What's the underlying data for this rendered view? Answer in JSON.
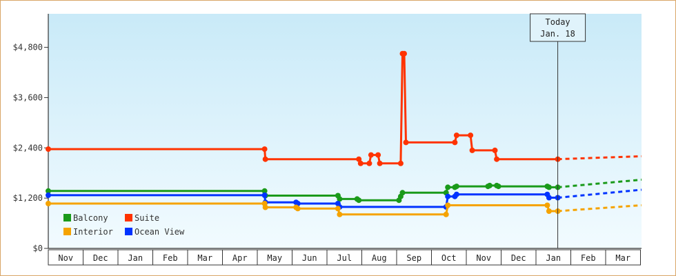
{
  "chart_data": {
    "type": "line",
    "y_axis": {
      "ticks": [
        "$0",
        "$1,200",
        "$2,400",
        "$3,600",
        "$4,800"
      ],
      "tick_values": [
        0,
        1200,
        2400,
        3600,
        4800
      ],
      "ylim": [
        0,
        5600
      ],
      "ticks_right_side": true
    },
    "x_axis": {
      "months": [
        "Nov",
        "Dec",
        "Jan",
        "Feb",
        "Mar",
        "Apr",
        "May",
        "Jun",
        "Jul",
        "Aug",
        "Sep",
        "Oct",
        "Nov",
        "Dec",
        "Jan",
        "Feb",
        "Mar"
      ],
      "xlim": [
        0,
        17
      ]
    },
    "today": {
      "line1": "Today",
      "line2": "Jan. 18",
      "x": 14.6
    },
    "legend": [
      {
        "label": "Balcony",
        "color": "#1a9a1a"
      },
      {
        "label": "Suite",
        "color": "#ff3300"
      },
      {
        "label": "Interior",
        "color": "#f5a300"
      },
      {
        "label": "Ocean View",
        "color": "#0033ff"
      }
    ],
    "series": [
      {
        "name": "Suite",
        "color": "#ff3300",
        "points": [
          [
            0,
            2370
          ],
          [
            6.2,
            2370
          ],
          [
            6.22,
            2130
          ],
          [
            8.9,
            2130
          ],
          [
            8.95,
            2030
          ],
          [
            9.2,
            2030
          ],
          [
            9.25,
            2230
          ],
          [
            9.45,
            2230
          ],
          [
            9.5,
            2030
          ],
          [
            10.1,
            2030
          ],
          [
            10.15,
            4650
          ],
          [
            10.2,
            4650
          ],
          [
            10.25,
            2530
          ],
          [
            11.65,
            2530
          ],
          [
            11.7,
            2700
          ],
          [
            12.1,
            2700
          ],
          [
            12.15,
            2340
          ],
          [
            12.8,
            2340
          ],
          [
            12.85,
            2130
          ],
          [
            14.6,
            2130
          ]
        ],
        "forecast": [
          [
            14.6,
            2130
          ],
          [
            17,
            2200
          ]
        ]
      },
      {
        "name": "Balcony",
        "color": "#1a9a1a",
        "points": [
          [
            0,
            1370
          ],
          [
            6.2,
            1370
          ],
          [
            6.22,
            1260
          ],
          [
            8.3,
            1260
          ],
          [
            8.35,
            1180
          ],
          [
            8.85,
            1180
          ],
          [
            8.9,
            1150
          ],
          [
            10.05,
            1150
          ],
          [
            10.1,
            1240
          ],
          [
            10.15,
            1330
          ],
          [
            11.4,
            1330
          ],
          [
            11.45,
            1460
          ],
          [
            11.65,
            1460
          ],
          [
            11.7,
            1480
          ],
          [
            12.6,
            1480
          ],
          [
            12.65,
            1500
          ],
          [
            12.85,
            1500
          ],
          [
            12.9,
            1480
          ],
          [
            14.3,
            1480
          ],
          [
            14.35,
            1460
          ],
          [
            14.6,
            1460
          ]
        ],
        "forecast": [
          [
            14.6,
            1460
          ],
          [
            17,
            1640
          ]
        ]
      },
      {
        "name": "Ocean View",
        "color": "#0033ff",
        "points": [
          [
            0,
            1270
          ],
          [
            6.2,
            1270
          ],
          [
            6.22,
            1100
          ],
          [
            7.1,
            1100
          ],
          [
            7.15,
            1070
          ],
          [
            8.3,
            1070
          ],
          [
            8.35,
            990
          ],
          [
            11.4,
            990
          ],
          [
            11.45,
            1240
          ],
          [
            11.65,
            1240
          ],
          [
            11.7,
            1290
          ],
          [
            14.3,
            1290
          ],
          [
            14.35,
            1210
          ],
          [
            14.6,
            1210
          ]
        ],
        "forecast": [
          [
            14.6,
            1210
          ],
          [
            17,
            1400
          ]
        ]
      },
      {
        "name": "Interior",
        "color": "#f5a300",
        "points": [
          [
            0,
            1070
          ],
          [
            6.2,
            1070
          ],
          [
            6.22,
            980
          ],
          [
            7.1,
            980
          ],
          [
            7.15,
            950
          ],
          [
            8.3,
            950
          ],
          [
            8.35,
            810
          ],
          [
            11.4,
            810
          ],
          [
            11.45,
            1030
          ],
          [
            14.3,
            1030
          ],
          [
            14.35,
            890
          ],
          [
            14.6,
            890
          ]
        ],
        "forecast": [
          [
            14.6,
            890
          ],
          [
            17,
            1030
          ]
        ]
      }
    ]
  }
}
